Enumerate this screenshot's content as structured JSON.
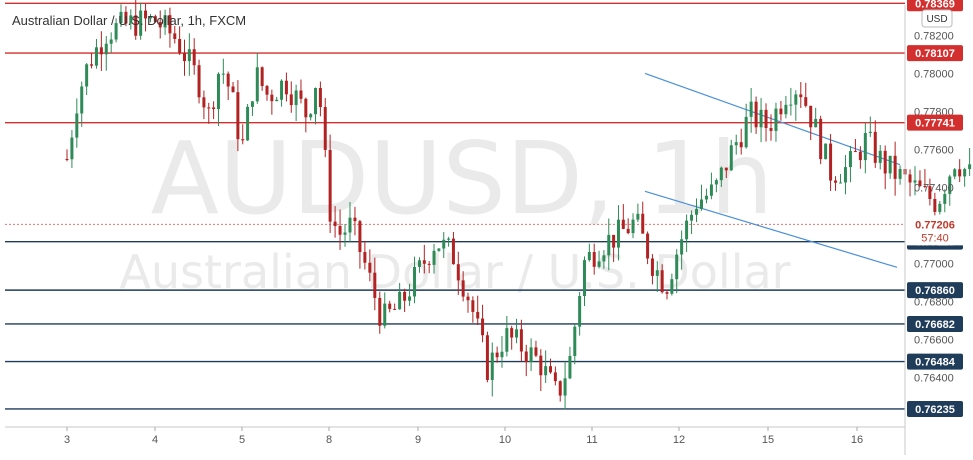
{
  "header": {
    "title": "Australian Dollar / U.S. Dollar, 1h, FXCM",
    "currency": "USD"
  },
  "watermark": {
    "symbol": "AUDUSD, 1h",
    "name": "Australian Dollar / U.S. Dollar"
  },
  "colors": {
    "resistance": "#d32f2f",
    "support": "#1f3c5a",
    "channel": "#4a90d9",
    "bull": "#2e8b57",
    "bear": "#b22222",
    "last_price": "#e57373"
  },
  "chart_data": {
    "type": "candlestick",
    "symbol": "AUDUSD",
    "interval": "1h",
    "x_ticks": [
      "3",
      "4",
      "5",
      "8",
      "9",
      "10",
      "11",
      "12",
      "15",
      "16"
    ],
    "y_range": [
      0.7614,
      0.7836
    ],
    "y_ticks": [
      "0.78200",
      "0.78000",
      "0.77800",
      "0.77600",
      "0.77400",
      "0.77200",
      "0.77000",
      "0.76800",
      "0.76600",
      "0.76400"
    ],
    "resistance_levels": [
      "0.78369",
      "0.78107",
      "0.77741"
    ],
    "support_levels": [
      "0.77115",
      "0.76860",
      "0.76682",
      "0.76484",
      "0.76235"
    ],
    "last_price": "0.77206",
    "countdown": "57:40",
    "grid": false,
    "channel": {
      "upper": [
        {
          "x": "11",
          "y": 0.78
        },
        {
          "x": "16",
          "y": 0.7752
        }
      ],
      "lower": [
        {
          "x": "11",
          "y": 0.7738
        },
        {
          "x": "16",
          "y": 0.7698
        }
      ]
    },
    "series": [
      {
        "name": "AUDUSD",
        "points": [
          {
            "x": 0.0,
            "y": 0.7755
          },
          {
            "x": 0.12,
            "y": 0.7788
          },
          {
            "x": 0.25,
            "y": 0.7806
          },
          {
            "x": 0.45,
            "y": 0.7822
          },
          {
            "x": 0.7,
            "y": 0.7826
          },
          {
            "x": 1.0,
            "y": 0.7828
          },
          {
            "x": 1.25,
            "y": 0.7818
          },
          {
            "x": 1.5,
            "y": 0.7796
          },
          {
            "x": 1.62,
            "y": 0.7778
          },
          {
            "x": 1.75,
            "y": 0.7805
          },
          {
            "x": 1.87,
            "y": 0.779
          },
          {
            "x": 2.0,
            "y": 0.776
          },
          {
            "x": 2.15,
            "y": 0.78
          },
          {
            "x": 2.3,
            "y": 0.7788
          },
          {
            "x": 2.5,
            "y": 0.7796
          },
          {
            "x": 2.75,
            "y": 0.7778
          },
          {
            "x": 2.87,
            "y": 0.78
          },
          {
            "x": 3.0,
            "y": 0.773
          },
          {
            "x": 3.1,
            "y": 0.7715
          },
          {
            "x": 3.25,
            "y": 0.772
          },
          {
            "x": 3.4,
            "y": 0.77
          },
          {
            "x": 3.6,
            "y": 0.767
          },
          {
            "x": 3.8,
            "y": 0.7678
          },
          {
            "x": 4.0,
            "y": 0.7695
          },
          {
            "x": 4.2,
            "y": 0.7712
          },
          {
            "x": 4.4,
            "y": 0.7705
          },
          {
            "x": 4.6,
            "y": 0.768
          },
          {
            "x": 4.8,
            "y": 0.7645
          },
          {
            "x": 5.0,
            "y": 0.7662
          },
          {
            "x": 5.2,
            "y": 0.7656
          },
          {
            "x": 5.4,
            "y": 0.7648
          },
          {
            "x": 5.6,
            "y": 0.763
          },
          {
            "x": 5.75,
            "y": 0.765
          },
          {
            "x": 5.9,
            "y": 0.77
          },
          {
            "x": 6.1,
            "y": 0.771
          },
          {
            "x": 6.3,
            "y": 0.7715
          },
          {
            "x": 6.5,
            "y": 0.7722
          },
          {
            "x": 6.7,
            "y": 0.77
          },
          {
            "x": 6.85,
            "y": 0.7688
          },
          {
            "x": 7.0,
            "y": 0.771
          },
          {
            "x": 7.2,
            "y": 0.7733
          },
          {
            "x": 7.4,
            "y": 0.7738
          },
          {
            "x": 7.6,
            "y": 0.776
          },
          {
            "x": 7.8,
            "y": 0.7778
          },
          {
            "x": 8.0,
            "y": 0.7772
          },
          {
            "x": 8.2,
            "y": 0.779
          },
          {
            "x": 8.35,
            "y": 0.7794
          },
          {
            "x": 8.5,
            "y": 0.7775
          },
          {
            "x": 8.7,
            "y": 0.7748
          },
          {
            "x": 8.9,
            "y": 0.775
          },
          {
            "x": 9.1,
            "y": 0.7765
          },
          {
            "x": 9.3,
            "y": 0.7752
          },
          {
            "x": 9.5,
            "y": 0.7745
          },
          {
            "x": 9.7,
            "y": 0.7738
          },
          {
            "x": 9.9,
            "y": 0.7732
          },
          {
            "x": 10.1,
            "y": 0.7755
          },
          {
            "x": 10.3,
            "y": 0.7745
          },
          {
            "x": 10.5,
            "y": 0.7745
          },
          {
            "x": 10.6,
            "y": 0.772
          }
        ]
      }
    ]
  }
}
